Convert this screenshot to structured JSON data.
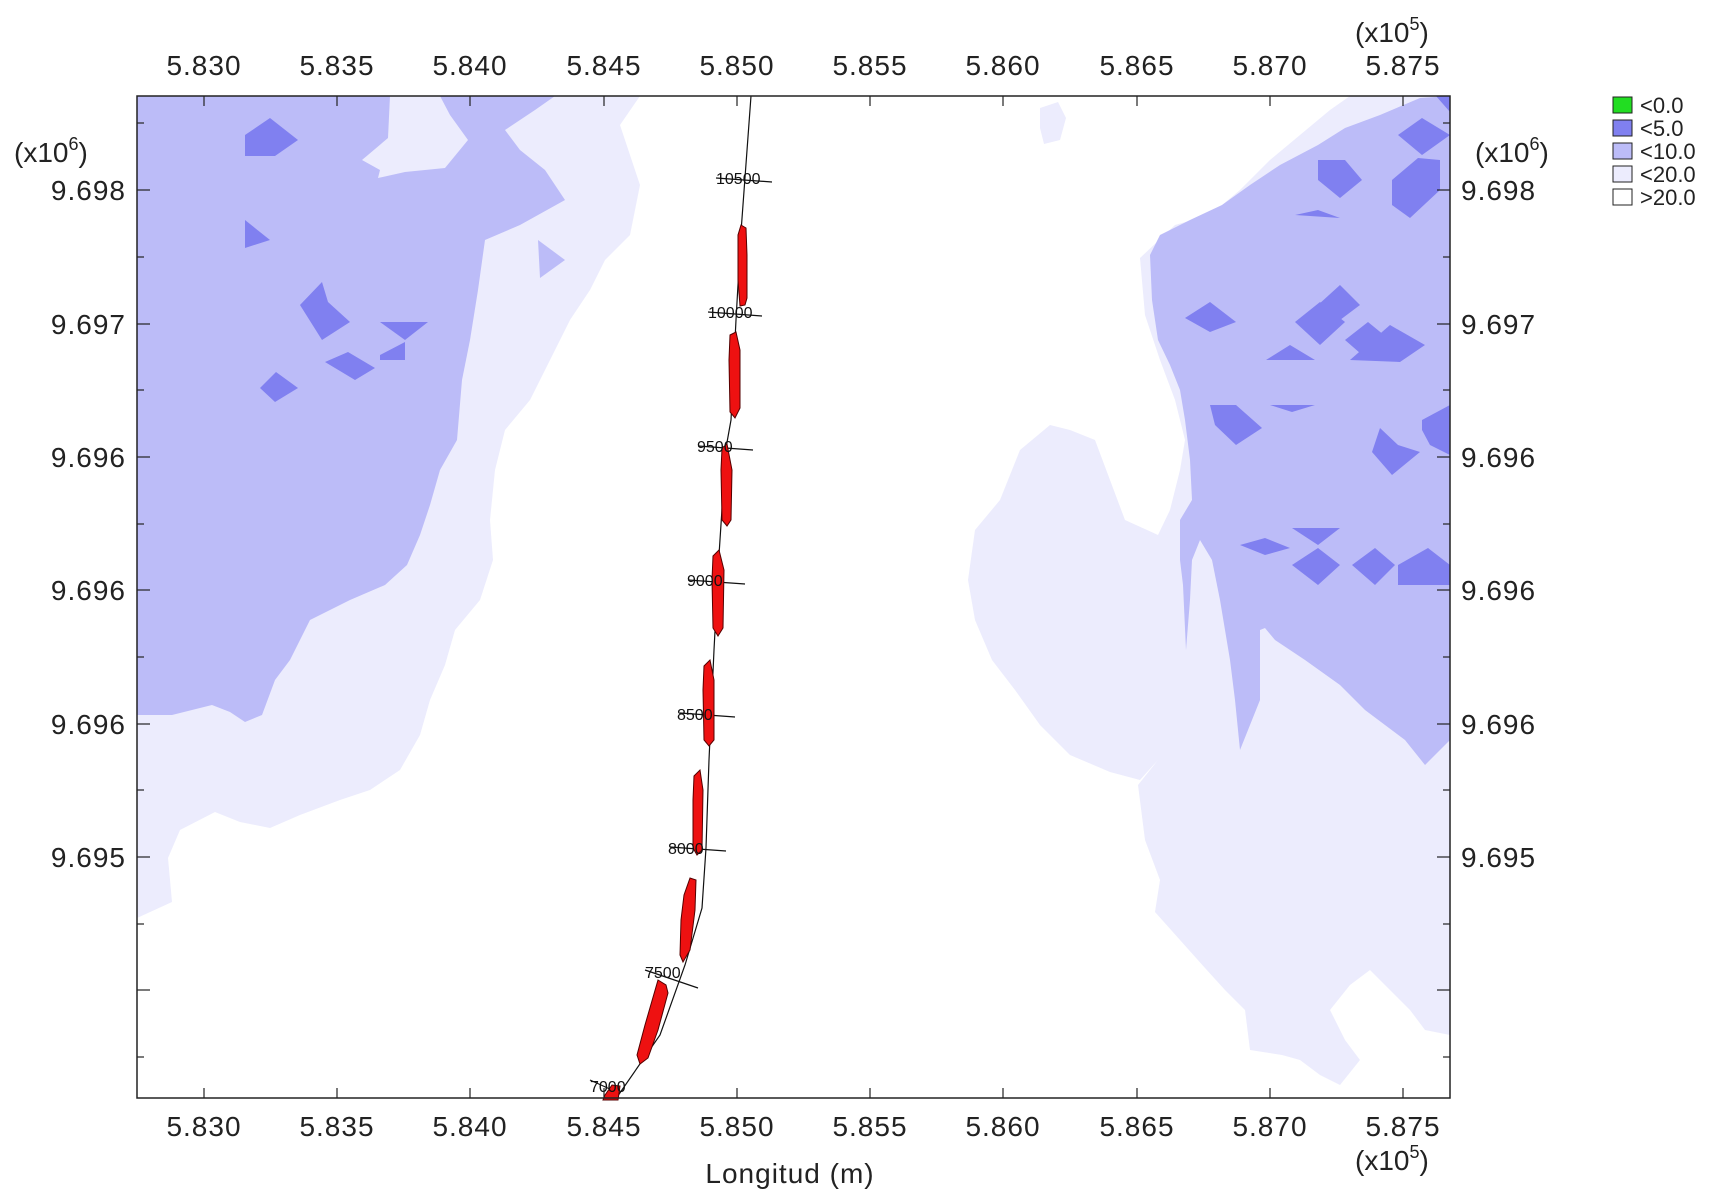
{
  "map": {
    "x_axis_title": "Longitud (m)",
    "x_multiplier": {
      "base": "(x10",
      "exp": "5",
      "close": ")"
    },
    "y_multiplier": {
      "base": "(x10",
      "exp": "6",
      "close": ")"
    },
    "x_ticks": [
      "5.830",
      "5.835",
      "5.840",
      "5.845",
      "5.850",
      "5.855",
      "5.860",
      "5.865",
      "5.870",
      "5.875"
    ],
    "y_ticks": [
      "9.698",
      "9.697",
      "9.696",
      "9.696",
      "9.696",
      "9.695"
    ],
    "stations": [
      "10500",
      "10000",
      "9500",
      "9000",
      "8500",
      "8000",
      "7500",
      "7000"
    ],
    "legend": [
      {
        "label": "<0.0",
        "color": "#22dd22"
      },
      {
        "label": "<5.0",
        "color": "#8080f0"
      },
      {
        "label": "<10.0",
        "color": "#bcbcf8"
      },
      {
        "label": "<20.0",
        "color": "#ececfd"
      },
      {
        "label": ">20.0",
        "color": "#ffffff"
      }
    ],
    "colors": {
      "zone_lt5": "#8080f0",
      "zone_lt10": "#bcbcf8",
      "zone_lt20": "#ececfd",
      "track_segment": "#ee1111"
    }
  }
}
